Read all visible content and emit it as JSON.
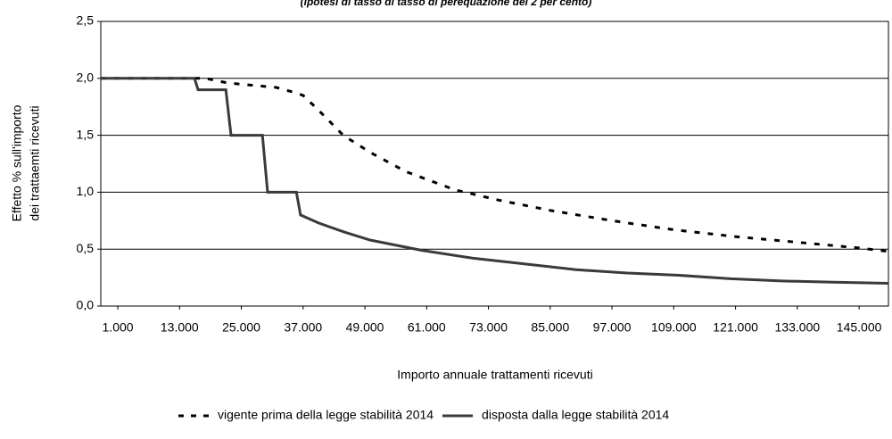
{
  "chart_data": {
    "type": "line",
    "subtitle": "(ipotesi di tasso di tasso di perequazione del 2 per cento)",
    "y_label": [
      "Effetto %  sull'importo",
      "dei trattaemti ricevuti"
    ],
    "x_label": "Importo annuale trattamenti ricevuti",
    "xlim": [
      -2300,
      150700
    ],
    "ylim": [
      0,
      2.5
    ],
    "xticks": [
      {
        "value": 1000,
        "label": "1.000"
      },
      {
        "value": 13000,
        "label": "13.000"
      },
      {
        "value": 25000,
        "label": "25.000"
      },
      {
        "value": 37000,
        "label": "37.000"
      },
      {
        "value": 49000,
        "label": "49.000"
      },
      {
        "value": 61000,
        "label": "61.000"
      },
      {
        "value": 73000,
        "label": "73.000"
      },
      {
        "value": 85000,
        "label": "85.000"
      },
      {
        "value": 97000,
        "label": "97.000"
      },
      {
        "value": 109000,
        "label": "109.000"
      },
      {
        "value": 121000,
        "label": "121.000"
      },
      {
        "value": 133000,
        "label": "133.000"
      },
      {
        "value": 145000,
        "label": "145.000"
      }
    ],
    "yticks": [
      {
        "value": 0,
        "label": "0,0"
      },
      {
        "value": 0.5,
        "label": "0,5"
      },
      {
        "value": 1,
        "label": "1,0"
      },
      {
        "value": 1.5,
        "label": "1,5"
      },
      {
        "value": 2,
        "label": "2,0"
      },
      {
        "value": 2.5,
        "label": "2,5"
      }
    ],
    "grid": true,
    "legend": "bottom",
    "series": [
      {
        "name": "vigente prima della legge stabilità 2014",
        "color": "#000000",
        "dash": true,
        "x": [
          -2300,
          18000,
          22300,
          27000,
          31800,
          35000,
          37000,
          40000,
          44800,
          50000,
          57000,
          66500,
          75000,
          85000,
          97000,
          109000,
          121000,
          133000,
          145000,
          150700
        ],
        "values": [
          2.0,
          2.0,
          1.96,
          1.94,
          1.92,
          1.88,
          1.85,
          1.72,
          1.5,
          1.35,
          1.18,
          1.02,
          0.93,
          0.84,
          0.75,
          0.67,
          0.61,
          0.56,
          0.51,
          0.48
        ]
      },
      {
        "name": "disposta dalla legge stabilità 2014",
        "color": "#3a3a3a",
        "dash": false,
        "x": [
          -2300,
          15900,
          16600,
          22000,
          23000,
          29100,
          30100,
          35700,
          36500,
          40000,
          45000,
          50000,
          60000,
          70000,
          80000,
          90000,
          100000,
          110000,
          120000,
          130000,
          140000,
          150700
        ],
        "values": [
          2.0,
          2.0,
          1.9,
          1.9,
          1.5,
          1.5,
          1.0,
          1.0,
          0.8,
          0.73,
          0.65,
          0.58,
          0.49,
          0.42,
          0.37,
          0.32,
          0.29,
          0.27,
          0.24,
          0.22,
          0.21,
          0.2
        ]
      }
    ]
  }
}
